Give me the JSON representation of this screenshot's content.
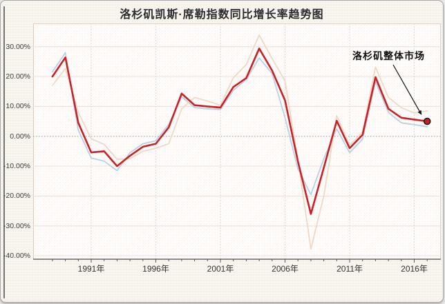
{
  "window": {
    "title": "洛杉矶凯斯·席勒指数同比增长率趋势图"
  },
  "annotation": {
    "label": "洛杉矶整体市场"
  },
  "colors": {
    "red_series": "#cb2026",
    "blue_series": "#b9d2e2",
    "tan_series": "#eed9c6",
    "grid_h": "#ecdfd7",
    "grid_v": "#e0d6ce",
    "zero_line": "#9a9a9a",
    "axis": "#4a4a4a",
    "dot_fill": "#cb2026",
    "dot_ring": "#1a1a1a",
    "page_bg": "#f8f5ef",
    "plot_bg": "#fffefc"
  },
  "chart_data": {
    "type": "line",
    "title": "洛杉矶凯斯·席勒指数同比增长率趋势图",
    "xlabel": "",
    "ylabel": "",
    "x": [
      1988,
      1989,
      1990,
      1991,
      1992,
      1993,
      1994,
      1995,
      1996,
      1997,
      1998,
      1999,
      2000,
      2001,
      2002,
      2003,
      2004,
      2005,
      2006,
      2007,
      2008,
      2009,
      2010,
      2011,
      2012,
      2013,
      2014,
      2015,
      2016,
      2017
    ],
    "series": [
      {
        "name": "light-blue-series",
        "label": "",
        "color": "#b9d2e2",
        "width": 1.8,
        "values": [
          21.6,
          28.0,
          2.0,
          -7.3,
          -8.3,
          -11.5,
          -5.5,
          -2.5,
          -1.5,
          4.0,
          13.2,
          9.6,
          9.2,
          8.9,
          15.4,
          19.0,
          26.2,
          21.0,
          6.2,
          -11.0,
          -19.5,
          -7.5,
          2.5,
          -5.5,
          -1.0,
          18.3,
          8.0,
          4.5,
          3.9,
          3.2
        ]
      },
      {
        "name": "tan-series",
        "label": "",
        "color": "#eed9c6",
        "width": 1.8,
        "values": [
          17.0,
          22.7,
          8.0,
          -0.8,
          -2.7,
          -7.7,
          -7.5,
          -5.0,
          -4.0,
          -2.5,
          9.2,
          13.0,
          11.8,
          10.4,
          19.6,
          24.0,
          33.9,
          26.0,
          18.5,
          -8.0,
          -37.7,
          -20.0,
          6.9,
          -3.0,
          1.5,
          23.2,
          13.0,
          9.6,
          7.8,
          8.5
        ]
      },
      {
        "name": "la-overall-market",
        "label": "洛杉矶整体市场",
        "color": "#cb2026",
        "width": 2.6,
        "endpoint_dot": true,
        "values": [
          20.0,
          26.4,
          4.5,
          -5.4,
          -5.0,
          -10.0,
          -6.5,
          -3.5,
          -2.5,
          3.0,
          14.3,
          10.4,
          10.0,
          9.6,
          16.5,
          19.5,
          29.4,
          22.0,
          12.0,
          -8.5,
          -26.0,
          -10.5,
          5.2,
          -4.0,
          0.5,
          19.8,
          9.2,
          6.2,
          5.6,
          5.0
        ]
      }
    ],
    "y_ticks": [
      {
        "v": 30,
        "label": "30.00%"
      },
      {
        "v": 20,
        "label": "20.00%"
      },
      {
        "v": 10,
        "label": "10.00%"
      },
      {
        "v": 0,
        "label": "0.00%"
      },
      {
        "v": -10,
        "label": "-10.00%"
      },
      {
        "v": -20,
        "label": "-20.00%"
      },
      {
        "v": -30,
        "label": "-30.00%"
      },
      {
        "v": -40,
        "label": "-40.00%"
      }
    ],
    "x_ticks": [
      {
        "v": 1991,
        "label": "1991年"
      },
      {
        "v": 1996,
        "label": "1996年"
      },
      {
        "v": 2001,
        "label": "2001年"
      },
      {
        "v": 2006,
        "label": "2006年"
      },
      {
        "v": 2011,
        "label": "2011年"
      },
      {
        "v": 2016,
        "label": "2016年"
      }
    ],
    "minor_x_tick_years": [
      1988,
      1989,
      1990,
      1991,
      1992,
      1993,
      1994,
      1995,
      1996,
      1997,
      1998,
      1999,
      2000,
      2001,
      2002,
      2003,
      2004,
      2005,
      2006,
      2007,
      2008,
      2009,
      2010,
      2011,
      2012,
      2013,
      2014,
      2015,
      2016,
      2017
    ],
    "xlim": [
      1986.5,
      2018.1
    ],
    "ylim": [
      -41.1,
      37.8
    ],
    "grid": true,
    "zero_line_style": "dotted",
    "legend_position": "none",
    "annotation": {
      "text": "洛杉矶整体市场",
      "points_to_series": "la-overall-market",
      "points_to_x": 2017
    }
  }
}
